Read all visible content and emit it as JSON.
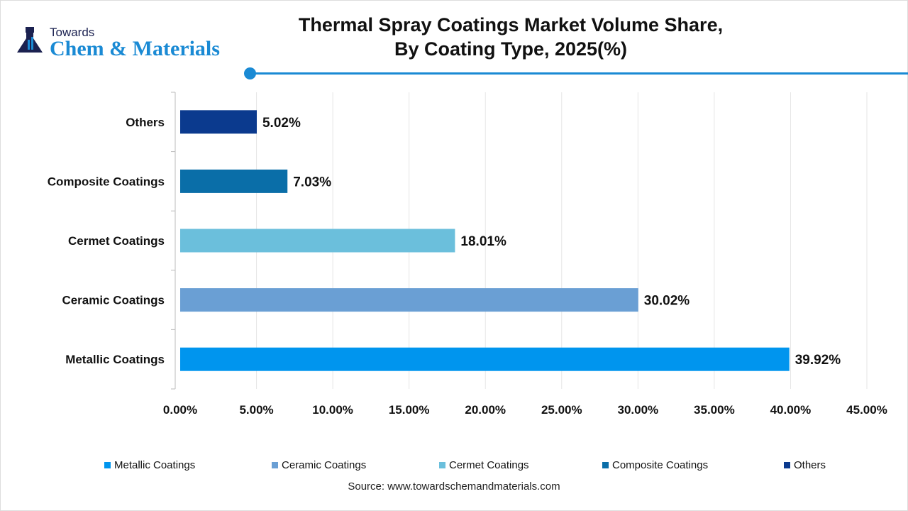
{
  "logo": {
    "line1": "Towards",
    "line2": "Chem & Materials"
  },
  "title_line1": "Thermal Spray Coatings Market Volume Share,",
  "title_line2": "By Coating Type, 2025(%)",
  "source": "Source: www.towardschemandmaterials.com",
  "chart_data": {
    "type": "bar",
    "orientation": "horizontal",
    "title": "Thermal Spray Coatings Market Volume Share, By Coating Type, 2025(%)",
    "categories": [
      "Metallic Coatings",
      "Ceramic Coatings",
      "Cermet Coatings",
      "Composite Coatings",
      "Others"
    ],
    "values": [
      39.92,
      30.02,
      18.01,
      7.03,
      5.02
    ],
    "data_labels": [
      "39.92%",
      "30.02%",
      "18.01%",
      "7.03%",
      "5.02%"
    ],
    "colors": [
      "#0095ee",
      "#6a9fd4",
      "#6bbfdc",
      "#0a6ea8",
      "#0b3a8e"
    ],
    "xlim": [
      0,
      45
    ],
    "xticks": [
      "0.00%",
      "5.00%",
      "10.00%",
      "15.00%",
      "20.00%",
      "25.00%",
      "30.00%",
      "35.00%",
      "40.00%",
      "45.00%"
    ],
    "grid": true,
    "legend": "bottom"
  }
}
